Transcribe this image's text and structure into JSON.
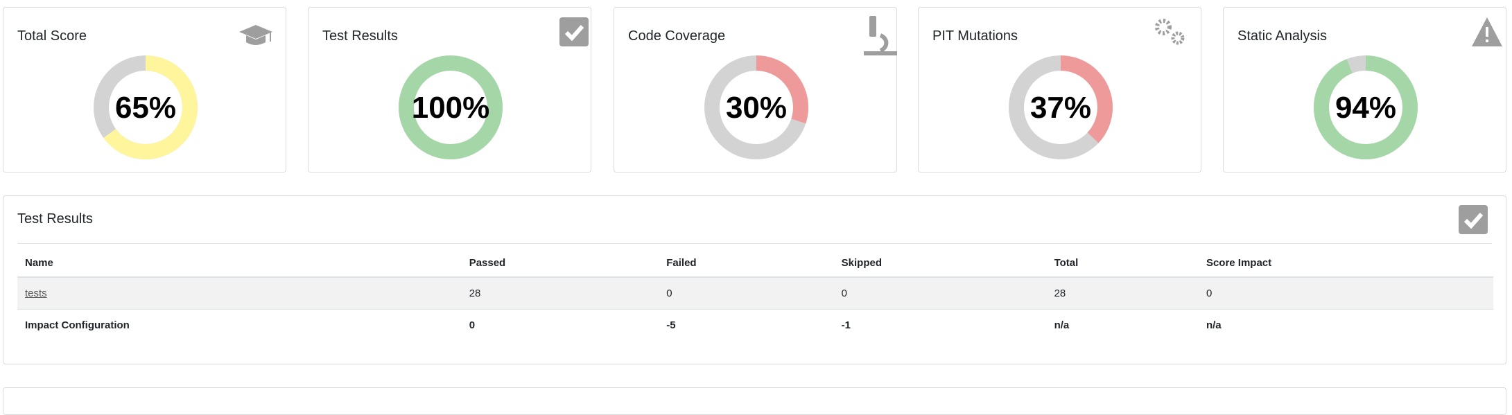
{
  "cards": [
    {
      "title": "Total Score",
      "percent": 65,
      "percent_label": "65%",
      "color": "#fff59d"
    },
    {
      "title": "Test Results",
      "percent": 100,
      "percent_label": "100%",
      "color": "#a5d6a7"
    },
    {
      "title": "Code Coverage",
      "percent": 30,
      "percent_label": "30%",
      "color": "#ef9a9a"
    },
    {
      "title": "PIT Mutations",
      "percent": 37,
      "percent_label": "37%",
      "color": "#ef9a9a"
    },
    {
      "title": "Static Analysis",
      "percent": 94,
      "percent_label": "94%",
      "color": "#a5d6a7"
    }
  ],
  "panel": {
    "title": "Test Results",
    "table": {
      "header": [
        "Name",
        "Passed",
        "Failed",
        "Skipped",
        "Total",
        "Score Impact"
      ],
      "rows": [
        [
          "tests",
          "28",
          "0",
          "0",
          "28",
          "0"
        ],
        [
          "Impact Configuration",
          "0",
          "-5",
          "-1",
          "n/a",
          "n/a"
        ]
      ]
    }
  }
}
